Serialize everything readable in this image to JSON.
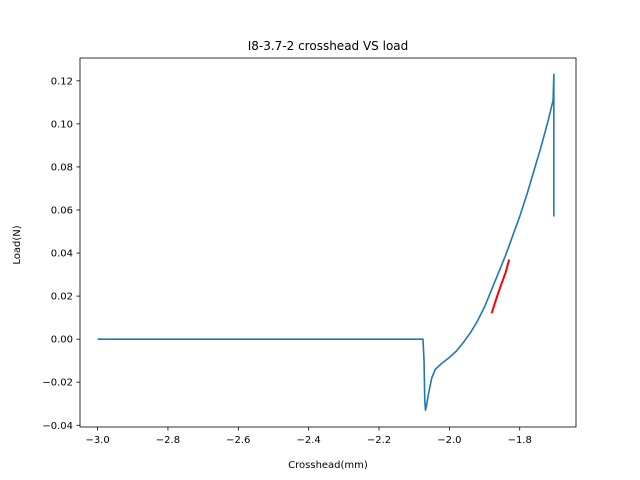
{
  "chart_data": {
    "type": "line",
    "title": "I8-3.7-2 crosshead VS load",
    "xlabel": "Crosshead(mm)",
    "ylabel": "Load(N)",
    "xlim": [
      -3.05,
      -1.64
    ],
    "ylim": [
      -0.0408,
      0.1306
    ],
    "xticks": [
      -3.0,
      -2.8,
      -2.6,
      -2.4,
      -2.2,
      -2.0,
      -1.8
    ],
    "xtick_labels": [
      "−3.0",
      "−2.8",
      "−2.6",
      "−2.4",
      "−2.2",
      "−2.0",
      "−1.8"
    ],
    "yticks": [
      -0.04,
      -0.02,
      0.0,
      0.02,
      0.04,
      0.06,
      0.08,
      0.1,
      0.12
    ],
    "ytick_labels": [
      "−0.04",
      "−0.02",
      "0.00",
      "0.02",
      "0.04",
      "0.06",
      "0.08",
      "0.10",
      "0.12"
    ],
    "grid": false,
    "series": [
      {
        "color": "#1f77b4",
        "x": [
          -3.0,
          -2.8,
          -2.6,
          -2.4,
          -2.2,
          -2.08,
          -2.075,
          -2.072,
          -2.07,
          -2.068,
          -2.065,
          -2.06,
          -2.05,
          -2.04,
          -2.03,
          -2.02,
          -2.0,
          -1.98,
          -1.96,
          -1.94,
          -1.92,
          -1.9,
          -1.88,
          -1.86,
          -1.84,
          -1.82,
          -1.8,
          -1.78,
          -1.76,
          -1.74,
          -1.72,
          -1.705,
          -1.703,
          -1.703
        ],
        "y": [
          0.0,
          0.0,
          0.0,
          0.0,
          0.0,
          0.0,
          0.0,
          -0.01,
          -0.028,
          -0.033,
          -0.031,
          -0.026,
          -0.018,
          -0.014,
          -0.0125,
          -0.011,
          -0.0085,
          -0.0055,
          -0.0015,
          0.003,
          0.0085,
          0.015,
          0.023,
          0.031,
          0.039,
          0.048,
          0.057,
          0.067,
          0.078,
          0.089,
          0.101,
          0.111,
          0.123,
          0.057
        ]
      },
      {
        "color": "#ff0000",
        "x": [
          -1.88,
          -1.86,
          -1.84,
          -1.83
        ],
        "y": [
          0.012,
          0.022,
          0.031,
          0.037
        ]
      }
    ]
  }
}
